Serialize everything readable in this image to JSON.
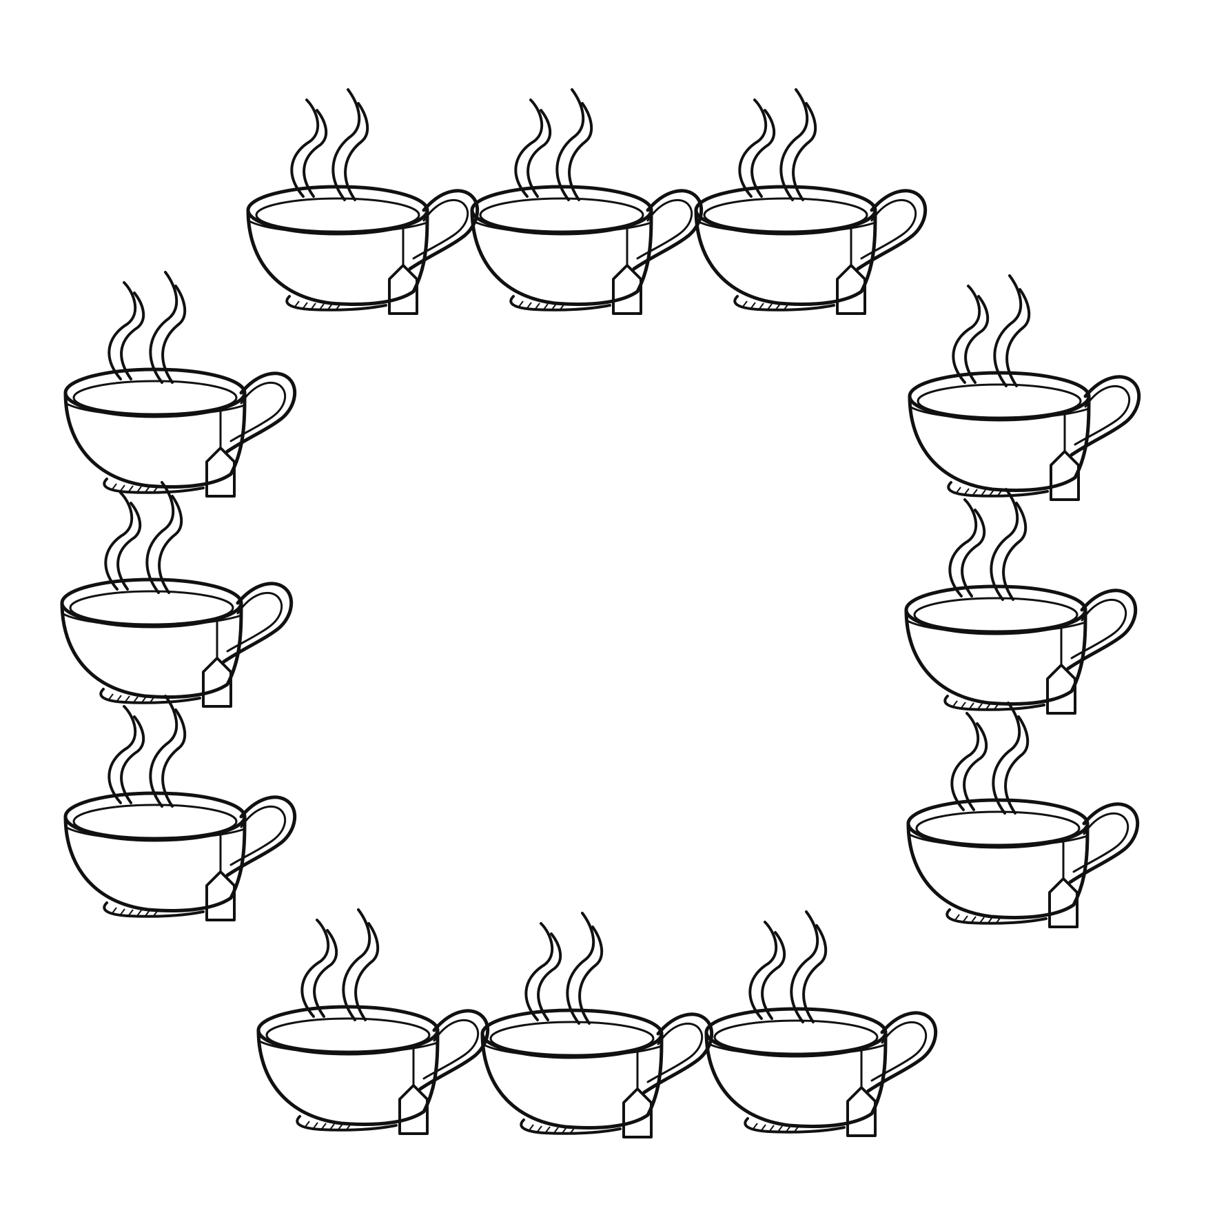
{
  "image": {
    "subject": "teacup-frame",
    "background_color": "#ffffff",
    "ink_color": "#111111"
  },
  "frame": {
    "top_row_count": 3,
    "left_column_count": 3,
    "right_column_count": 3,
    "bottom_row_count": 3,
    "total_cups": 12,
    "cup_features": [
      "steam",
      "handle",
      "tea-bag-tag",
      "hatched-foot"
    ]
  }
}
